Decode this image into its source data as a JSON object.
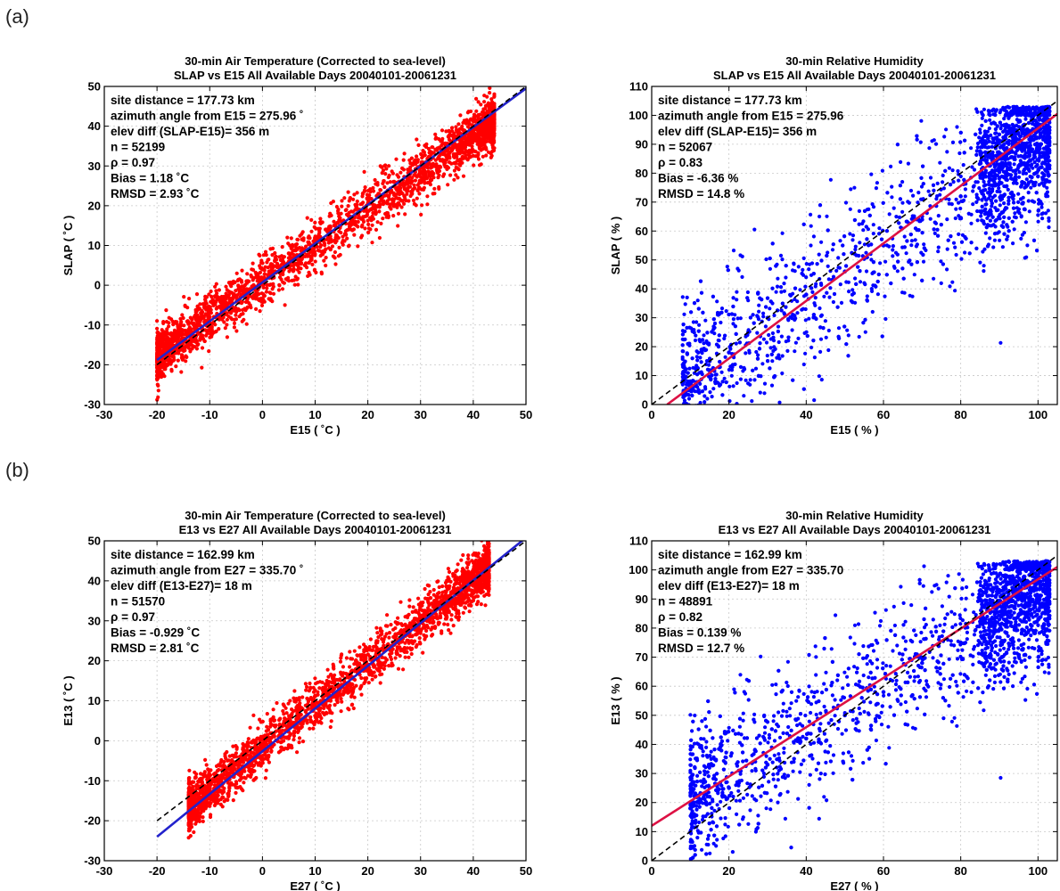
{
  "panel_labels": [
    "(a)",
    "(b)"
  ],
  "chart_data": [
    {
      "type": "scatter",
      "panel": "(a)",
      "title": [
        "30-min Air Temperature (Corrected to sea-level)",
        "SLAP vs E15 All Available Days 20040101-20061231"
      ],
      "xlabel": "E15 ( ˚C )",
      "ylabel": "SLAP ( ˚C )",
      "xlim": [
        -30,
        50
      ],
      "ylim": [
        -30,
        50
      ],
      "xticks": [
        -30,
        -20,
        -10,
        0,
        10,
        20,
        30,
        40,
        50
      ],
      "yticks": [
        -30,
        -20,
        -10,
        0,
        10,
        20,
        30,
        40,
        50
      ],
      "grid": true,
      "stats": [
        "site distance = 177.73 km",
        "azimuth angle from E15 = 275.96 ˚",
        "elev diff (SLAP-E15)= 356 m",
        "n = 52199",
        "ρ = 0.97",
        "Bias = 1.18 ˚C",
        "RMSD = 2.93 ˚C"
      ],
      "scatter_color": "#ff0000",
      "series": [
        {
          "name": "observations",
          "kind": "scatter-cloud",
          "x_range": [
            -20,
            44
          ],
          "fit_slope": 0.92,
          "fit_intercept": 0.7,
          "spread": 3.2,
          "x_sample": [
            -15,
            -12,
            -10,
            -8,
            -5,
            -3,
            0,
            2,
            5,
            8,
            10,
            12,
            15,
            18,
            20,
            22,
            25,
            28,
            30,
            32,
            35,
            38,
            40,
            42,
            43
          ],
          "y_sample": [
            -14,
            -10,
            -8,
            -4,
            -3,
            1,
            4,
            3,
            8,
            9,
            11,
            14,
            16,
            18,
            22,
            23,
            26,
            28,
            30,
            33,
            35,
            36,
            39,
            42,
            43
          ]
        },
        {
          "name": "regression",
          "kind": "line",
          "x": [
            -20,
            50
          ],
          "y": [
            -18.8,
            49.5
          ],
          "color": "#2222cc"
        },
        {
          "name": "1:1",
          "kind": "line",
          "x": [
            -20,
            50
          ],
          "y": [
            -20,
            50
          ],
          "color": "#000000",
          "dashed": true
        }
      ]
    },
    {
      "type": "scatter",
      "panel": "(a)",
      "title": [
        "30-min Relative Humidity",
        "SLAP vs E15 All Available Days 20040101-20061231"
      ],
      "xlabel": "E15 ( % )",
      "ylabel": "SLAP ( % )",
      "xlim": [
        0,
        105
      ],
      "ylim": [
        0,
        110
      ],
      "xticks": [
        0,
        20,
        40,
        60,
        80,
        100
      ],
      "yticks": [
        0,
        10,
        20,
        30,
        40,
        50,
        60,
        70,
        80,
        90,
        100,
        110
      ],
      "grid": true,
      "stats": [
        "site distance = 177.73 km",
        "azimuth angle from E15 = 275.96",
        "elev diff (SLAP-E15)= 356 m",
        "n = 52067",
        "ρ = 0.83",
        "Bias = -6.36 %",
        "RMSD = 14.8 %"
      ],
      "scatter_color": "#0000ff",
      "series": [
        {
          "name": "observations",
          "kind": "scatter-cloud",
          "x_range": [
            8,
            103
          ],
          "fit_slope": 0.96,
          "fit_intercept": -3.0,
          "spread": 13,
          "x_sample": [
            10,
            15,
            20,
            25,
            30,
            40,
            50,
            60,
            70,
            80,
            90,
            95,
            100,
            102
          ],
          "y_sample": [
            8,
            15,
            18,
            25,
            30,
            38,
            46,
            55,
            65,
            72,
            85,
            90,
            97,
            99
          ]
        },
        {
          "name": "regression",
          "kind": "line",
          "x": [
            4,
            105
          ],
          "y": [
            0,
            100.5
          ],
          "color": "#dd1144"
        },
        {
          "name": "1:1",
          "kind": "line",
          "x": [
            0,
            105
          ],
          "y": [
            0,
            105
          ],
          "color": "#000000",
          "dashed": true
        }
      ]
    },
    {
      "type": "scatter",
      "panel": "(b)",
      "title": [
        "30-min Air Temperature (Corrected to sea-level)",
        "E13 vs E27 All Available Days 20040101-20061231"
      ],
      "xlabel": "E27 ( ˚C )",
      "ylabel": "E13 ( ˚C )",
      "xlim": [
        -30,
        50
      ],
      "ylim": [
        -30,
        50
      ],
      "xticks": [
        -30,
        -20,
        -10,
        0,
        10,
        20,
        30,
        40,
        50
      ],
      "yticks": [
        -30,
        -20,
        -10,
        0,
        10,
        20,
        30,
        40,
        50
      ],
      "grid": true,
      "stats": [
        "site distance = 162.99 km",
        "azimuth angle from E27 = 335.70 ˚",
        "elev diff (E13-E27)= 18 m",
        "n = 51570",
        "ρ = 0.97",
        "Bias = -0.929 ˚C",
        "RMSD = 2.81 ˚C"
      ],
      "scatter_color": "#ff0000",
      "series": [
        {
          "name": "observations",
          "kind": "scatter-cloud",
          "x_range": [
            -14,
            43
          ],
          "fit_slope": 1.05,
          "fit_intercept": -1.8,
          "spread": 3.0,
          "x_sample": [
            -12,
            -10,
            -8,
            -5,
            0,
            5,
            10,
            15,
            20,
            25,
            30,
            35,
            40,
            42
          ],
          "y_sample": [
            -12,
            -11,
            -9,
            -6,
            -2,
            3,
            9,
            14,
            18,
            24,
            30,
            35,
            40,
            44
          ]
        },
        {
          "name": "regression",
          "kind": "line",
          "x": [
            -20,
            50
          ],
          "y": [
            -24,
            50.8
          ],
          "color": "#2222cc"
        },
        {
          "name": "1:1",
          "kind": "line",
          "x": [
            -20,
            50
          ],
          "y": [
            -20,
            50
          ],
          "color": "#000000",
          "dashed": true
        }
      ]
    },
    {
      "type": "scatter",
      "panel": "(b)",
      "title": [
        "30-min Relative Humidity",
        "E13 vs E27 All Available Days 20040101-20061231"
      ],
      "xlabel": "E27 ( % )",
      "ylabel": "E13 ( % )",
      "xlim": [
        0,
        105
      ],
      "ylim": [
        0,
        110
      ],
      "xticks": [
        0,
        20,
        40,
        60,
        80,
        100
      ],
      "yticks": [
        0,
        10,
        20,
        30,
        40,
        50,
        60,
        70,
        80,
        90,
        100,
        110
      ],
      "grid": true,
      "stats": [
        "site distance = 162.99 km",
        "azimuth angle from E27 = 335.70",
        "elev diff (E13-E27)= 18 m",
        "n = 48891",
        "ρ = 0.82",
        "Bias = 0.139 %",
        "RMSD = 12.7 %"
      ],
      "scatter_color": "#0000ff",
      "series": [
        {
          "name": "observations",
          "kind": "scatter-cloud",
          "x_range": [
            10,
            103
          ],
          "fit_slope": 0.82,
          "fit_intercept": 12.0,
          "spread": 12,
          "x_sample": [
            10,
            15,
            20,
            30,
            40,
            50,
            60,
            70,
            80,
            90,
            95,
            100,
            102
          ],
          "y_sample": [
            18,
            22,
            25,
            33,
            42,
            50,
            58,
            68,
            75,
            88,
            92,
            98,
            103
          ]
        },
        {
          "name": "regression",
          "kind": "line",
          "x": [
            0,
            105
          ],
          "y": [
            12.0,
            101.0
          ],
          "color": "#dd1144"
        },
        {
          "name": "1:1",
          "kind": "line",
          "x": [
            0,
            105
          ],
          "y": [
            0,
            105
          ],
          "color": "#000000",
          "dashed": true
        }
      ]
    }
  ]
}
